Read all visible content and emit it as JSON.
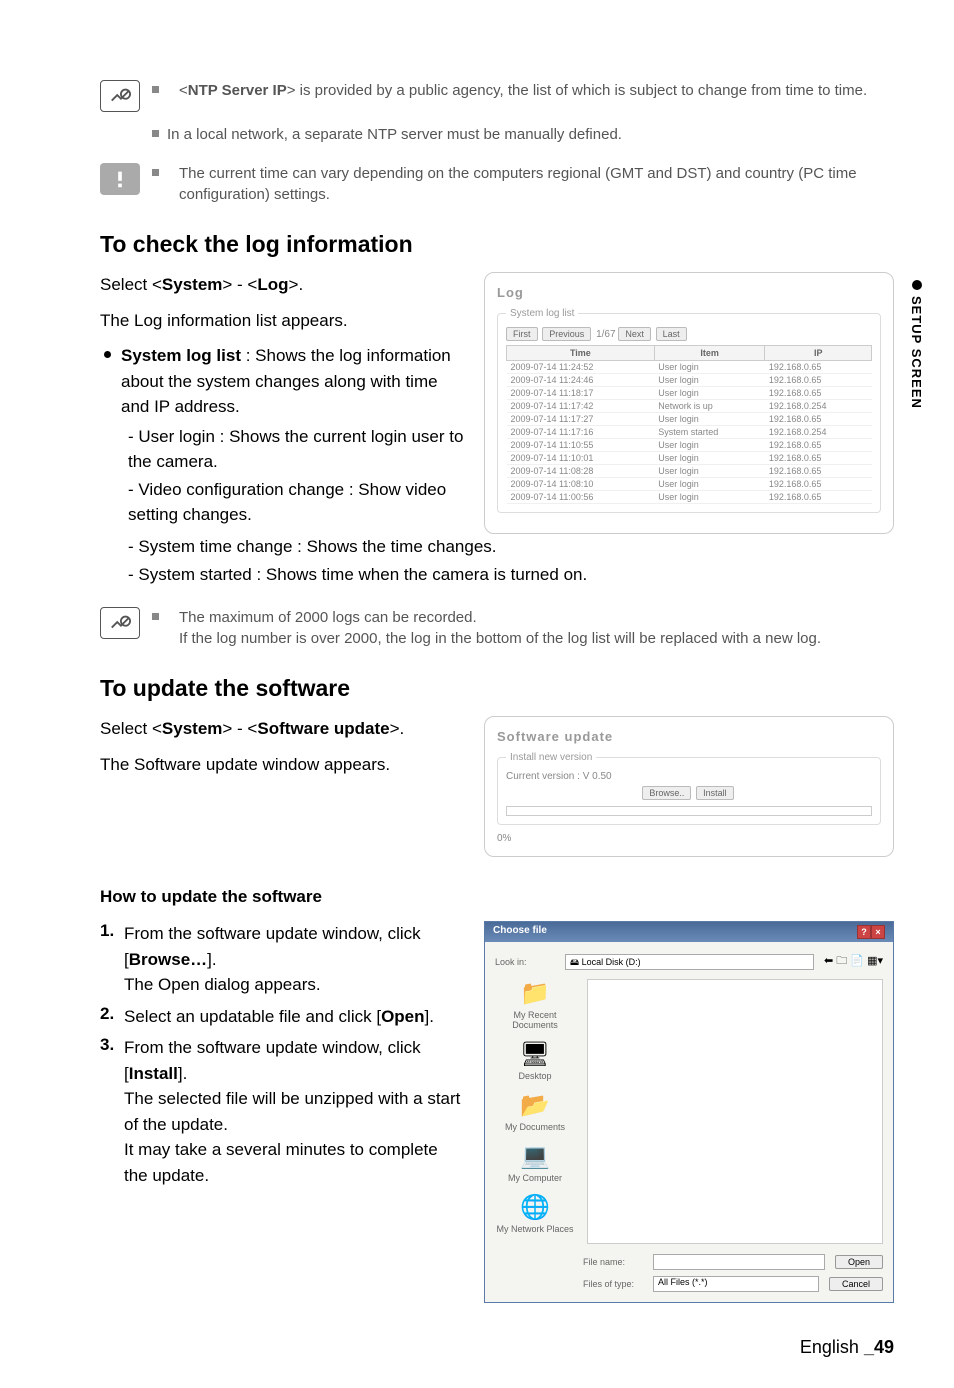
{
  "note1_text_prefix": "<",
  "note1_bold": "NTP Server IP",
  "note1_text_suffix": "> is provided by a public agency, the list of which is subject to change from time to time.",
  "note2": "In a local network, a separate NTP server must be manually defined.",
  "alert1": "The current time can vary depending on the computers regional (GMT and DST) and country (PC time configuration) settings.",
  "section1_title": "To check the log information",
  "section1_select_prefix": "Select <",
  "section1_select_b1": "System",
  "section1_select_mid": "> - <",
  "section1_select_b2": "Log",
  "section1_select_suffix": ">.",
  "section1_line2": "The Log information list appears.",
  "log_item_label_prefix": "System log list",
  "log_item_label_suffix": " : Shows the log information about the system changes along with time and IP address.",
  "log_sub1": "- User login : Shows the current login user to the camera.",
  "log_sub2": "- Video configuration change : Show video setting changes.",
  "log_sub3": "- System time change : Shows the time changes.",
  "log_sub4": "- System started : Shows time when the camera is turned on.",
  "note3_l1": "The maximum of 2000 logs can be recorded.",
  "note3_l2": "If the log number is over 2000, the log in the bottom of the log list will be replaced with a new log.",
  "section2_title": "To update the software",
  "section2_select_prefix": "Select <",
  "section2_select_b1": "System",
  "section2_select_mid": "> - <",
  "section2_select_b2": "Software update",
  "section2_select_suffix": ">.",
  "section2_line2": "The Software update window appears.",
  "how_title": "How to update the software",
  "step1": "From the software update window, click [",
  "step1_bold": "Browse…",
  "step1_suffix": "].",
  "step1_l2": "The Open dialog appears.",
  "step2": "Select an updatable file and click [",
  "step2_bold": "Open",
  "step2_suffix": "].",
  "step3": "From the software update window, click [",
  "step3_bold": "Install",
  "step3_suffix": "].",
  "step3_l2": "The selected file will be unzipped with a start of the update.",
  "step3_l3": "It may take a several minutes to complete the update.",
  "side_tab": "SETUP SCREEN",
  "footer_lang": "English ",
  "footer_page": "_49",
  "log_panel": {
    "title": "Log",
    "legend": "System log list",
    "buttons": [
      "First",
      "Previous",
      "Next",
      "Last"
    ],
    "pager": "1/67",
    "headers": [
      "Time",
      "Item",
      "IP"
    ],
    "rows": [
      [
        "2009-07-14 11:24:52",
        "User login",
        "192.168.0.65"
      ],
      [
        "2009-07-14 11:24:46",
        "User login",
        "192.168.0.65"
      ],
      [
        "2009-07-14 11:18:17",
        "User login",
        "192.168.0.65"
      ],
      [
        "2009-07-14 11:17:42",
        "Network is up",
        "192.168.0.254"
      ],
      [
        "2009-07-14 11:17:27",
        "User login",
        "192.168.0.65"
      ],
      [
        "2009-07-14 11:17:16",
        "System started",
        "192.168.0.254"
      ],
      [
        "2009-07-14 11:10:55",
        "User login",
        "192.168.0.65"
      ],
      [
        "2009-07-14 11:10:01",
        "User login",
        "192.168.0.65"
      ],
      [
        "2009-07-14 11:08:28",
        "User login",
        "192.168.0.65"
      ],
      [
        "2009-07-14 11:08:10",
        "User login",
        "192.168.0.65"
      ],
      [
        "2009-07-14 11:00:56",
        "User login",
        "192.168.0.65"
      ]
    ]
  },
  "sw_panel": {
    "title": "Software update",
    "legend": "Install new version",
    "current": "Current version : V 0.50",
    "browse_btn": "Browse..",
    "install_btn": "Install",
    "progress": "0%"
  },
  "dialog": {
    "title": "Choose file",
    "lookin_label": "Look in:",
    "lookin_value": "Local Disk (D:)",
    "side_labels": [
      "My Recent Documents",
      "Desktop",
      "My Documents",
      "My Computer",
      "My Network Places"
    ],
    "filename_label": "File name:",
    "filetype_label": "Files of type:",
    "filetype_value": "All Files (*.*)",
    "open_btn": "Open",
    "cancel_btn": "Cancel"
  }
}
